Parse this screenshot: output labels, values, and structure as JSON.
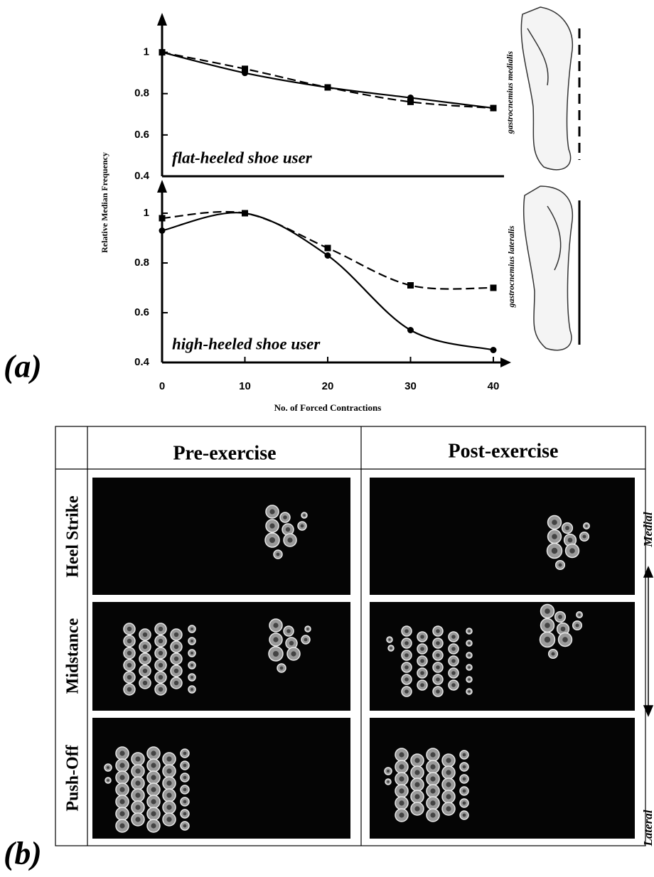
{
  "figure": {
    "panel_a": "(a)",
    "panel_b": "(b)"
  },
  "chart_data": [
    {
      "type": "line",
      "annotation": "flat-heeled shoe user",
      "ylabel": "Relative Median Frequency",
      "x": [
        0,
        10,
        20,
        30,
        40
      ],
      "xlim": [
        0,
        40
      ],
      "ylim": [
        0.4,
        1.15
      ],
      "yticks": [
        0.4,
        0.6,
        0.8,
        1
      ],
      "series": [
        {
          "name": "gastrocnemius medialis",
          "color": "#000000",
          "dashed": true,
          "marker": "square",
          "values": [
            1,
            0.92,
            0.83,
            0.76,
            0.73
          ]
        },
        {
          "name": "gastrocnemius lateralis",
          "color": "#000000",
          "dashed": false,
          "marker": "circle",
          "values": [
            1,
            0.9,
            0.83,
            0.78,
            0.73
          ]
        }
      ]
    },
    {
      "type": "line",
      "annotation": "high-heeled shoe user",
      "xlabel": "No. of Forced Contractions",
      "x": [
        0,
        10,
        20,
        30,
        40
      ],
      "xlim": [
        0,
        40
      ],
      "xticks": [
        0,
        10,
        20,
        30,
        40
      ],
      "ylim": [
        0.4,
        1.1
      ],
      "yticks": [
        0.4,
        0.6,
        0.8,
        1
      ],
      "series": [
        {
          "color": "#000000",
          "dashed": true,
          "marker": "square",
          "values": [
            0.98,
            1,
            0.86,
            0.71,
            0.7
          ]
        },
        {
          "color": "#000000",
          "dashed": false,
          "marker": "circle",
          "values": [
            0.93,
            1,
            0.83,
            0.53,
            0.45
          ]
        }
      ]
    }
  ],
  "table": {
    "columns": [
      "Pre-exercise",
      "Post-exercise"
    ],
    "rows": [
      "Heel Strike",
      "Midstance",
      "Push-Off"
    ],
    "direction": {
      "top": "Medial",
      "bottom": "Lateral"
    }
  }
}
